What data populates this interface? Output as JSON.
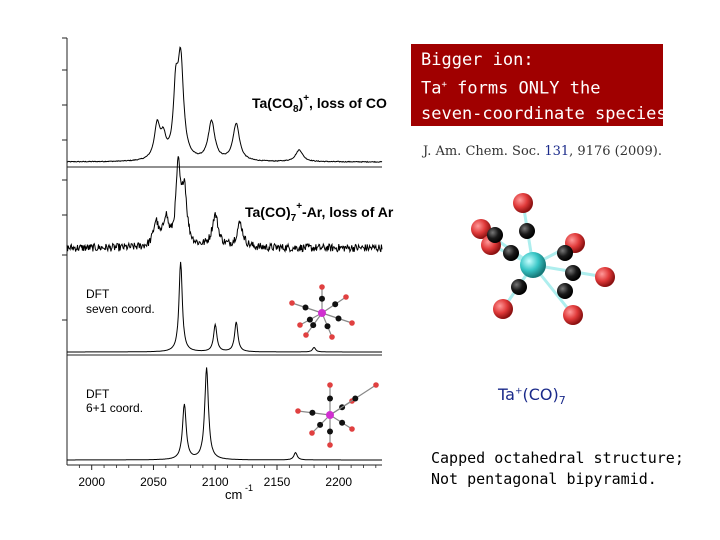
{
  "callout": {
    "line1": "Bigger ion:",
    "line2_prefix": "Ta",
    "line2_sup": "+",
    "line2_suffix": " forms ONLY the",
    "line3": "seven-coordinate species!",
    "bg_color": "#a00000"
  },
  "citation": {
    "journal": "J. Am. Chem. Soc. ",
    "volume": "131",
    "rest": ", 9176 (2009)."
  },
  "formula": {
    "base": "Ta",
    "sup": "+",
    "mid": "(CO)",
    "sub": "7"
  },
  "structure_note": {
    "line1": "Capped octahedral structure;",
    "line2": "Not pentagonal bipyramid."
  },
  "chart_data": {
    "type": "line",
    "xlabel": "cm",
    "xlabel_sup": "-1",
    "xlim": [
      1980,
      2235
    ],
    "x_ticks": [
      2000,
      2050,
      2100,
      2150,
      2200
    ],
    "x_tick_labels": [
      "2000",
      "2050",
      "2100",
      "2150",
      "2200"
    ],
    "series": [
      {
        "name": "Ta(CO8)+, loss of CO",
        "label_parts": [
          "Ta(CO",
          "8",
          ")",
          "+",
          ", loss of CO"
        ],
        "kind": "experiment",
        "noise": 0.004,
        "peaks": [
          [
            2053,
            0.35,
            2.8
          ],
          [
            2058,
            0.2,
            2.5
          ],
          [
            2068,
            0.62,
            2.2
          ],
          [
            2072,
            1.0,
            2.8
          ],
          [
            2097,
            0.4,
            3.2
          ],
          [
            2117,
            0.38,
            3.2
          ],
          [
            2168,
            0.12,
            3.5
          ]
        ]
      },
      {
        "name": "Ta(CO)7+-Ar, loss of Ar",
        "label_parts": [
          "Ta(CO)",
          "7",
          "",
          "+",
          "-Ar, loss of Ar"
        ],
        "kind": "experiment",
        "noise": 0.05,
        "peaks": [
          [
            2052,
            0.3,
            2.5
          ],
          [
            2060,
            0.35,
            2.5
          ],
          [
            2070,
            0.95,
            2.2
          ],
          [
            2075,
            0.7,
            2.4
          ],
          [
            2100,
            0.4,
            3.0
          ],
          [
            2120,
            0.3,
            3.0
          ]
        ]
      },
      {
        "name": "DFT seven coord.",
        "label_lines": [
          "DFT",
          "seven coord."
        ],
        "kind": "dft",
        "peaks": [
          [
            2072,
            1.0,
            1.6
          ],
          [
            2100,
            0.3,
            1.6
          ],
          [
            2117,
            0.33,
            1.6
          ],
          [
            2180,
            0.05,
            1.5
          ]
        ]
      },
      {
        "name": "DFT 6+1 coord.",
        "label_lines": [
          "DFT",
          "6+1 coord."
        ],
        "kind": "dft",
        "peaks": [
          [
            2075,
            0.6,
            1.8
          ],
          [
            2093,
            1.0,
            1.8
          ],
          [
            2165,
            0.08,
            1.6
          ]
        ]
      }
    ]
  }
}
